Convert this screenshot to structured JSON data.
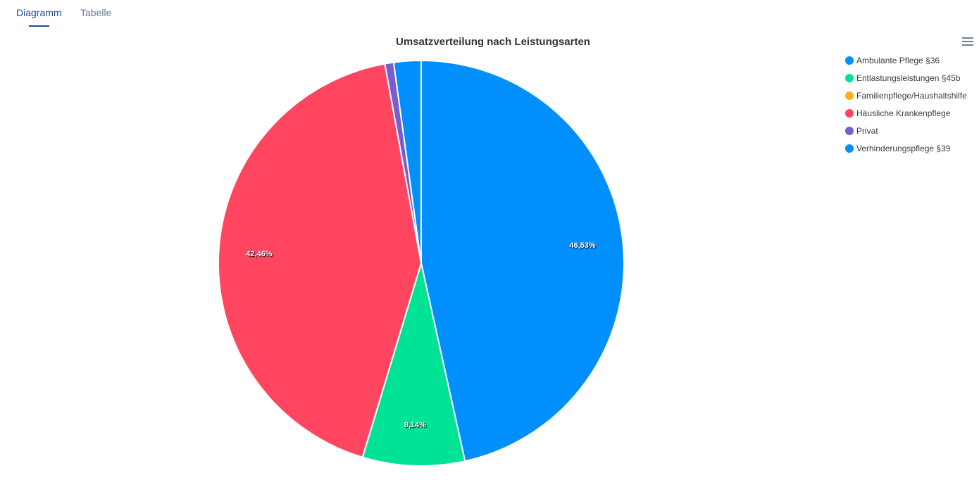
{
  "tabs": [
    "Diagramm",
    "Tabelle"
  ],
  "chart_data": {
    "type": "pie",
    "title": "Umsatzverteilung nach Leistungsarten",
    "categories": [
      "Ambulante Pflege §36",
      "Entlastungsleistungen §45b",
      "Familienpflege/Haushaltshilfe",
      "Häusliche Krankenpflege",
      "Privat",
      "Verhinderungspflege §39"
    ],
    "values": [
      46.53,
      8.14,
      0,
      42.46,
      0.7,
      2.17
    ],
    "value_labels": [
      "46,53%",
      "8,14%",
      null,
      "42,46%",
      null,
      null
    ],
    "colors": [
      "#008ffb",
      "#00e396",
      "#feb019",
      "#ff4560",
      "#775dd0",
      "#008ffb"
    ],
    "legend": "top-right"
  }
}
